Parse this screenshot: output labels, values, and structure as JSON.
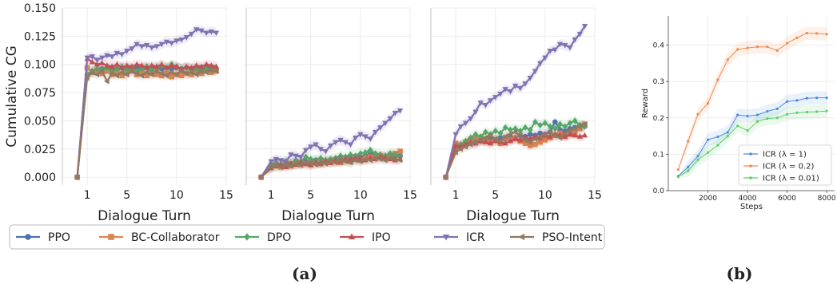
{
  "chart_data": [
    {
      "type": "line",
      "panel": "a-1",
      "title": "",
      "xlabel": "Dialogue Turn",
      "ylabel": "Cumulative CG",
      "xlim": [
        -1.5,
        15
      ],
      "ylim": [
        -0.007,
        0.15
      ],
      "xticks": [
        1,
        5,
        10,
        15
      ],
      "yticks": [
        0.0,
        0.025,
        0.05,
        0.075,
        0.1,
        0.125,
        0.15
      ],
      "ytick_labels": [
        "0.000",
        "0.025",
        "0.050",
        "0.075",
        "0.100",
        "0.125",
        "0.150"
      ],
      "grid": true,
      "x": [
        0,
        1,
        1.5,
        2,
        2.5,
        3,
        3.5,
        4,
        4.5,
        5,
        5.5,
        6,
        6.5,
        7,
        7.5,
        8,
        8.5,
        9,
        9.5,
        10,
        10.5,
        11,
        11.5,
        12,
        12.5,
        13,
        13.5,
        14
      ],
      "series": [
        {
          "name": "PPO",
          "values": [
            0,
            0.091,
            0.094,
            0.095,
            0.096,
            0.095,
            0.097,
            0.096,
            0.097,
            0.097,
            0.096,
            0.097,
            0.096,
            0.097,
            0.096,
            0.097,
            0.096,
            0.097,
            0.096,
            0.097,
            0.096,
            0.097,
            0.096,
            0.097,
            0.096,
            0.097,
            0.096,
            0.096
          ]
        },
        {
          "name": "BC-Collaborator",
          "values": [
            0,
            0.097,
            0.093,
            0.095,
            0.092,
            0.094,
            0.091,
            0.093,
            0.09,
            0.092,
            0.094,
            0.091,
            0.093,
            0.09,
            0.092,
            0.091,
            0.09,
            0.092,
            0.089,
            0.091,
            0.09,
            0.092,
            0.091,
            0.093,
            0.092,
            0.094,
            0.093,
            0.094
          ]
        },
        {
          "name": "DPO",
          "values": [
            0,
            0.09,
            0.094,
            0.096,
            0.095,
            0.097,
            0.094,
            0.096,
            0.098,
            0.095,
            0.097,
            0.094,
            0.096,
            0.098,
            0.095,
            0.097,
            0.099,
            0.097,
            0.1,
            0.098,
            0.096,
            0.097,
            0.095,
            0.096,
            0.094,
            0.096,
            0.095,
            0.097
          ]
        },
        {
          "name": "IPO",
          "values": [
            0,
            0.105,
            0.102,
            0.1,
            0.101,
            0.099,
            0.098,
            0.1,
            0.097,
            0.099,
            0.098,
            0.1,
            0.099,
            0.097,
            0.099,
            0.098,
            0.1,
            0.097,
            0.099,
            0.098,
            0.096,
            0.098,
            0.097,
            0.099,
            0.098,
            0.1,
            0.099,
            0.098
          ]
        },
        {
          "name": "ICR",
          "values": [
            0,
            0.106,
            0.107,
            0.104,
            0.106,
            0.108,
            0.107,
            0.11,
            0.109,
            0.112,
            0.114,
            0.118,
            0.116,
            0.117,
            0.115,
            0.116,
            0.118,
            0.12,
            0.119,
            0.121,
            0.122,
            0.124,
            0.127,
            0.131,
            0.13,
            0.128,
            0.129,
            0.128
          ]
        },
        {
          "name": "PSO-Intent",
          "values": [
            0,
            0.088,
            0.093,
            0.091,
            0.094,
            0.085,
            0.092,
            0.09,
            0.093,
            0.091,
            0.094,
            0.092,
            0.09,
            0.093,
            0.091,
            0.094,
            0.092,
            0.09,
            0.093,
            0.091,
            0.094,
            0.092,
            0.093,
            0.091,
            0.094,
            0.093,
            0.095,
            0.094
          ]
        }
      ]
    },
    {
      "type": "line",
      "panel": "a-2",
      "title": "",
      "xlabel": "Dialogue Turn",
      "ylabel": "",
      "xlim": [
        -1.5,
        15
      ],
      "ylim": [
        -0.007,
        0.15
      ],
      "xticks": [
        1,
        5,
        10,
        15
      ],
      "grid": true,
      "x": [
        0,
        1,
        1.5,
        2,
        2.5,
        3,
        3.5,
        4,
        4.5,
        5,
        5.5,
        6,
        6.5,
        7,
        7.5,
        8,
        8.5,
        9,
        9.5,
        10,
        10.5,
        11,
        11.5,
        12,
        12.5,
        13,
        13.5,
        14
      ],
      "series": [
        {
          "name": "PPO",
          "values": [
            0,
            0.011,
            0.012,
            0.011,
            0.013,
            0.012,
            0.014,
            0.012,
            0.014,
            0.013,
            0.015,
            0.013,
            0.014,
            0.015,
            0.014,
            0.016,
            0.015,
            0.017,
            0.016,
            0.018,
            0.019,
            0.021,
            0.019,
            0.018,
            0.017,
            0.019,
            0.018,
            0.019
          ]
        },
        {
          "name": "BC-Collaborator",
          "values": [
            0,
            0.009,
            0.01,
            0.009,
            0.011,
            0.01,
            0.012,
            0.011,
            0.012,
            0.011,
            0.013,
            0.012,
            0.014,
            0.013,
            0.014,
            0.013,
            0.015,
            0.014,
            0.016,
            0.015,
            0.017,
            0.018,
            0.017,
            0.019,
            0.018,
            0.02,
            0.021,
            0.023
          ]
        },
        {
          "name": "DPO",
          "values": [
            0,
            0.01,
            0.013,
            0.011,
            0.014,
            0.012,
            0.015,
            0.014,
            0.018,
            0.016,
            0.015,
            0.017,
            0.015,
            0.016,
            0.017,
            0.019,
            0.018,
            0.02,
            0.019,
            0.021,
            0.022,
            0.024,
            0.021,
            0.02,
            0.019,
            0.021,
            0.02,
            0.018
          ]
        },
        {
          "name": "IPO",
          "values": [
            0,
            0.008,
            0.01,
            0.011,
            0.009,
            0.012,
            0.011,
            0.013,
            0.012,
            0.011,
            0.013,
            0.012,
            0.014,
            0.013,
            0.015,
            0.014,
            0.016,
            0.015,
            0.017,
            0.016,
            0.015,
            0.017,
            0.016,
            0.018,
            0.017,
            0.016,
            0.015,
            0.016
          ]
        },
        {
          "name": "ICR",
          "values": [
            0,
            0.014,
            0.016,
            0.015,
            0.014,
            0.02,
            0.019,
            0.018,
            0.024,
            0.027,
            0.029,
            0.025,
            0.023,
            0.028,
            0.031,
            0.033,
            0.031,
            0.029,
            0.035,
            0.038,
            0.036,
            0.034,
            0.04,
            0.044,
            0.048,
            0.052,
            0.057,
            0.059
          ]
        },
        {
          "name": "PSO-Intent",
          "values": [
            0,
            0.009,
            0.01,
            0.009,
            0.011,
            0.01,
            0.012,
            0.011,
            0.013,
            0.012,
            0.011,
            0.013,
            0.012,
            0.014,
            0.013,
            0.015,
            0.014,
            0.013,
            0.015,
            0.014,
            0.016,
            0.015,
            0.017,
            0.016,
            0.015,
            0.017,
            0.016,
            0.015
          ]
        }
      ]
    },
    {
      "type": "line",
      "panel": "a-3",
      "title": "",
      "xlabel": "Dialogue Turn",
      "ylabel": "",
      "xlim": [
        -1.5,
        15
      ],
      "ylim": [
        -0.007,
        0.15
      ],
      "xticks": [
        1,
        5,
        10,
        15
      ],
      "grid": true,
      "x": [
        0,
        1,
        1.5,
        2,
        2.5,
        3,
        3.5,
        4,
        4.5,
        5,
        5.5,
        6,
        6.5,
        7,
        7.5,
        8,
        8.5,
        9,
        9.5,
        10,
        10.5,
        11,
        11.5,
        12,
        12.5,
        13,
        13.5,
        14
      ],
      "series": [
        {
          "name": "PPO",
          "values": [
            0,
            0.026,
            0.028,
            0.03,
            0.032,
            0.031,
            0.033,
            0.032,
            0.034,
            0.033,
            0.035,
            0.034,
            0.036,
            0.035,
            0.037,
            0.036,
            0.038,
            0.037,
            0.039,
            0.038,
            0.04,
            0.049,
            0.042,
            0.041,
            0.043,
            0.044,
            0.046,
            0.045
          ]
        },
        {
          "name": "BC-Collaborator",
          "values": [
            0,
            0.03,
            0.028,
            0.031,
            0.033,
            0.035,
            0.032,
            0.034,
            0.031,
            0.033,
            0.03,
            0.035,
            0.033,
            0.034,
            0.032,
            0.03,
            0.028,
            0.029,
            0.031,
            0.033,
            0.035,
            0.037,
            0.039,
            0.036,
            0.038,
            0.04,
            0.043,
            0.047
          ]
        },
        {
          "name": "DPO",
          "values": [
            0,
            0.025,
            0.029,
            0.032,
            0.035,
            0.038,
            0.036,
            0.04,
            0.038,
            0.041,
            0.039,
            0.044,
            0.042,
            0.043,
            0.041,
            0.044,
            0.042,
            0.049,
            0.046,
            0.048,
            0.045,
            0.043,
            0.047,
            0.045,
            0.048,
            0.05,
            0.046,
            0.045
          ]
        },
        {
          "name": "IPO",
          "values": [
            0,
            0.028,
            0.027,
            0.029,
            0.031,
            0.03,
            0.032,
            0.031,
            0.03,
            0.032,
            0.031,
            0.03,
            0.032,
            0.034,
            0.033,
            0.035,
            0.034,
            0.036,
            0.035,
            0.037,
            0.036,
            0.038,
            0.037,
            0.036,
            0.038,
            0.037,
            0.036,
            0.037
          ]
        },
        {
          "name": "ICR",
          "values": [
            0,
            0.038,
            0.045,
            0.048,
            0.052,
            0.058,
            0.066,
            0.064,
            0.068,
            0.071,
            0.074,
            0.078,
            0.076,
            0.081,
            0.079,
            0.083,
            0.088,
            0.094,
            0.101,
            0.106,
            0.112,
            0.113,
            0.118,
            0.117,
            0.115,
            0.122,
            0.127,
            0.134
          ]
        },
        {
          "name": "PSO-Intent",
          "values": [
            0,
            0.022,
            0.025,
            0.027,
            0.029,
            0.031,
            0.033,
            0.035,
            0.037,
            0.034,
            0.032,
            0.036,
            0.038,
            0.04,
            0.037,
            0.033,
            0.031,
            0.034,
            0.036,
            0.038,
            0.04,
            0.037,
            0.035,
            0.039,
            0.041,
            0.043,
            0.045,
            0.047
          ]
        }
      ]
    },
    {
      "type": "line",
      "panel": "b",
      "title": "",
      "xlabel": "Steps",
      "ylabel": "Reward",
      "xlim": [
        0,
        8400
      ],
      "ylim": [
        0,
        0.48
      ],
      "xticks": [
        2000,
        4000,
        6000,
        8000
      ],
      "yticks": [
        0.0,
        0.1,
        0.2,
        0.3,
        0.4
      ],
      "ytick_labels": [
        "0.0",
        "0.1",
        "0.2",
        "0.3",
        "0.4"
      ],
      "grid": true,
      "legend_position": "lower-right",
      "series": [
        {
          "name": "ICR (λ = 1)",
          "x": [
            500,
            1000,
            1500,
            2000,
            2500,
            3000,
            3500,
            4000,
            4500,
            5000,
            5500,
            6000,
            6500,
            7000,
            7500,
            8000
          ],
          "values": [
            0.04,
            0.065,
            0.095,
            0.14,
            0.148,
            0.16,
            0.208,
            0.205,
            0.208,
            0.218,
            0.225,
            0.245,
            0.248,
            0.254,
            0.255,
            0.255
          ]
        },
        {
          "name": "ICR (λ = 0.2)",
          "x": [
            500,
            1000,
            1500,
            2000,
            2500,
            3000,
            3500,
            4000,
            4500,
            5000,
            5500,
            6000,
            6500,
            7000,
            7500,
            8000
          ],
          "values": [
            0.058,
            0.136,
            0.21,
            0.24,
            0.305,
            0.36,
            0.388,
            0.392,
            0.395,
            0.395,
            0.385,
            0.405,
            0.42,
            0.433,
            0.432,
            0.43
          ]
        },
        {
          "name": "ICR (λ = 0.01)",
          "x": [
            500,
            1000,
            1500,
            2000,
            2500,
            3000,
            3500,
            4000,
            4500,
            5000,
            5500,
            6000,
            6500,
            7000,
            7500,
            8000
          ],
          "values": [
            0.038,
            0.055,
            0.085,
            0.105,
            0.125,
            0.15,
            0.178,
            0.165,
            0.19,
            0.198,
            0.2,
            0.21,
            0.214,
            0.216,
            0.217,
            0.219
          ]
        }
      ]
    }
  ],
  "legend_a": {
    "items": [
      {
        "label": "PPO",
        "color": "#4c72b0",
        "marker": "circle"
      },
      {
        "label": "BC-Collaborator",
        "color": "#dd8452",
        "marker": "square"
      },
      {
        "label": "DPO",
        "color": "#55a868",
        "marker": "diamond"
      },
      {
        "label": "IPO",
        "color": "#c44e52",
        "marker": "triangle-up"
      },
      {
        "label": "ICR",
        "color": "#8172b3",
        "marker": "triangle-down"
      },
      {
        "label": "PSO-Intent",
        "color": "#937860",
        "marker": "triangle-left"
      }
    ]
  },
  "legend_b": {
    "items": [
      {
        "label": "ICR (λ = 1)",
        "color": "#4c8be0"
      },
      {
        "label": "ICR (λ = 0.2)",
        "color": "#f08a50"
      },
      {
        "label": "ICR (λ = 0.01)",
        "color": "#5ccf6a"
      }
    ]
  },
  "captions": {
    "a": "(a)",
    "b": "(b)"
  }
}
